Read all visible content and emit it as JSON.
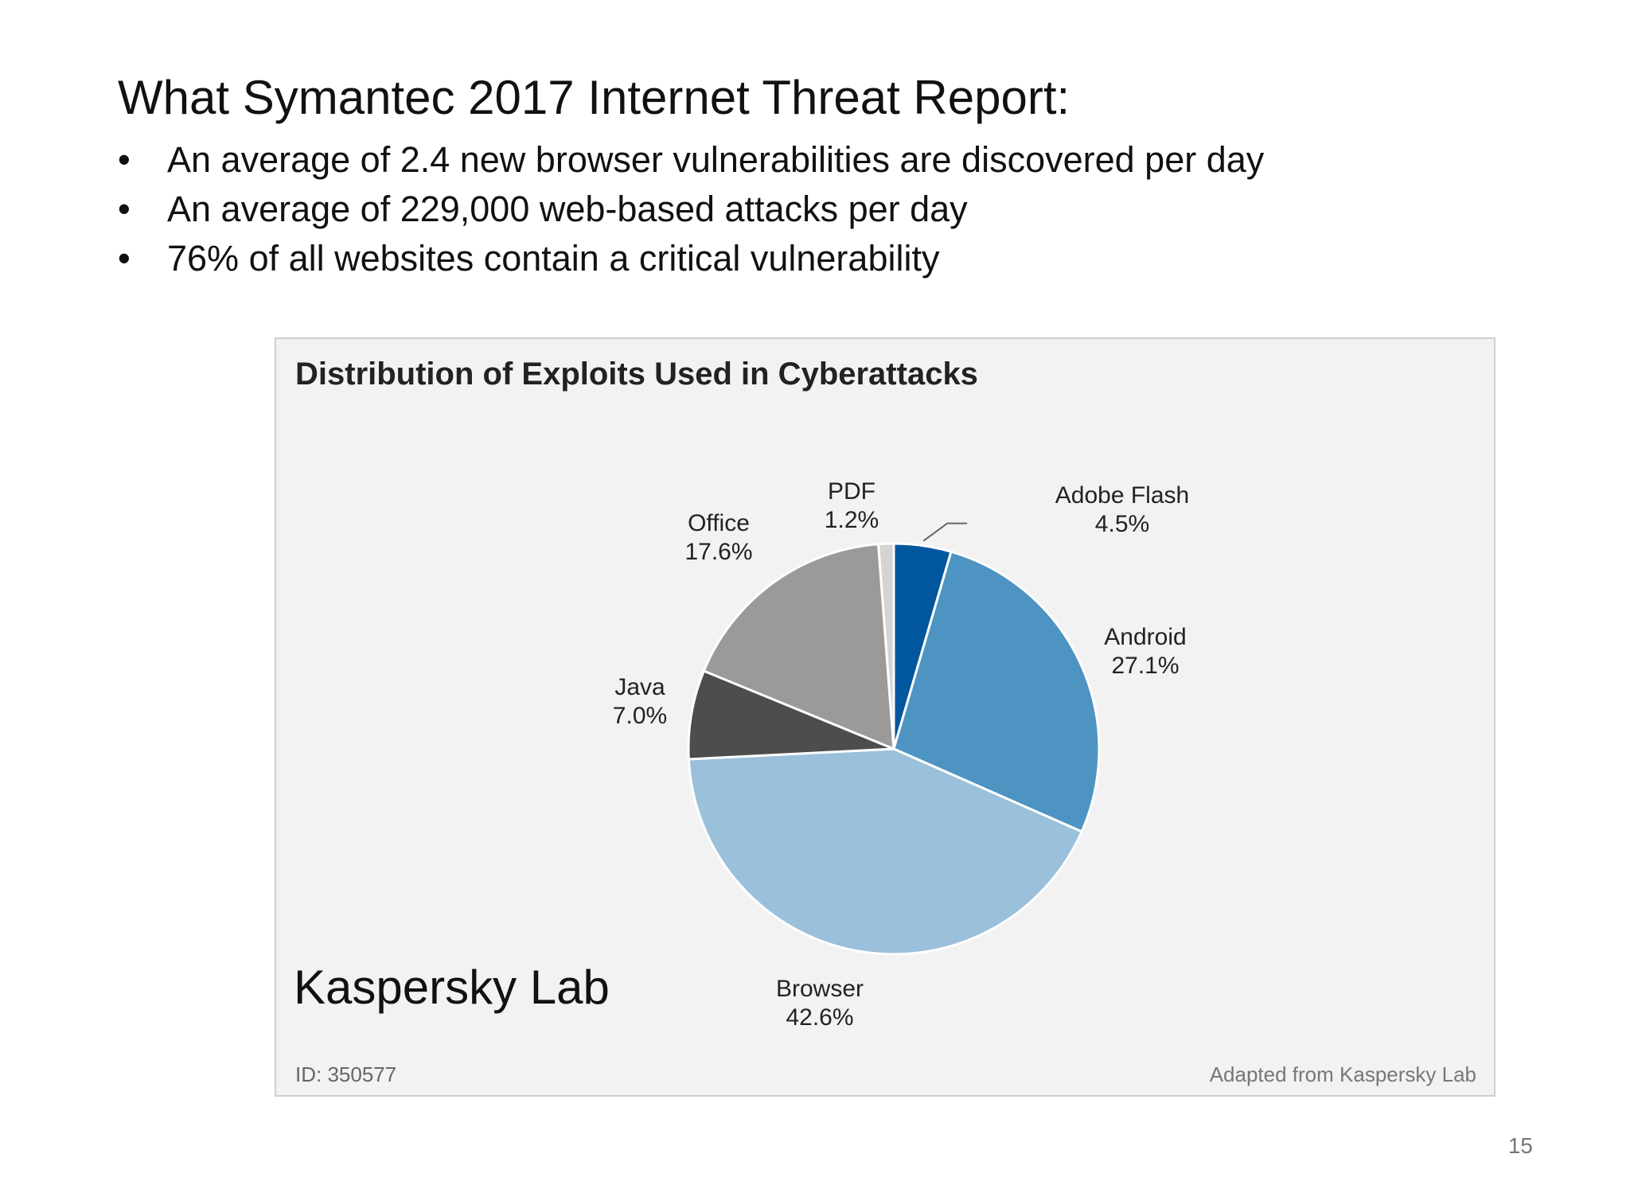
{
  "slide": {
    "title": "What Symantec 2017 Internet Threat Report:",
    "bullets": [
      "An average of 2.4 new browser vulnerabilities are discovered per day",
      "An average of 229,000 web-based attacks per day",
      "76% of all websites contain a critical vulnerability"
    ],
    "overlay_label": "Kaspersky Lab",
    "page_number": "15"
  },
  "figure": {
    "id_text": "ID: 350577",
    "source_text": "Adapted from Kaspersky Lab"
  },
  "chart_data": {
    "type": "pie",
    "title": "Distribution of Exploits Used in Cyberattacks",
    "start_angle_deg": 0,
    "direction": "clockwise",
    "slices": [
      {
        "name": "Adobe Flash",
        "value": 4.5,
        "label": "4.5%",
        "color": "#00579e"
      },
      {
        "name": "Android",
        "value": 27.1,
        "label": "27.1%",
        "color": "#4e94c2"
      },
      {
        "name": "Browser",
        "value": 42.6,
        "label": "42.6%",
        "color": "#9bc0db"
      },
      {
        "name": "Java",
        "value": 7.0,
        "label": "7.0%",
        "color": "#4d4d4d"
      },
      {
        "name": "Office",
        "value": 17.6,
        "label": "17.6%",
        "color": "#9a9a9a"
      },
      {
        "name": "PDF",
        "value": 1.2,
        "label": "1.2%",
        "color": "#d4d4d4"
      }
    ]
  }
}
